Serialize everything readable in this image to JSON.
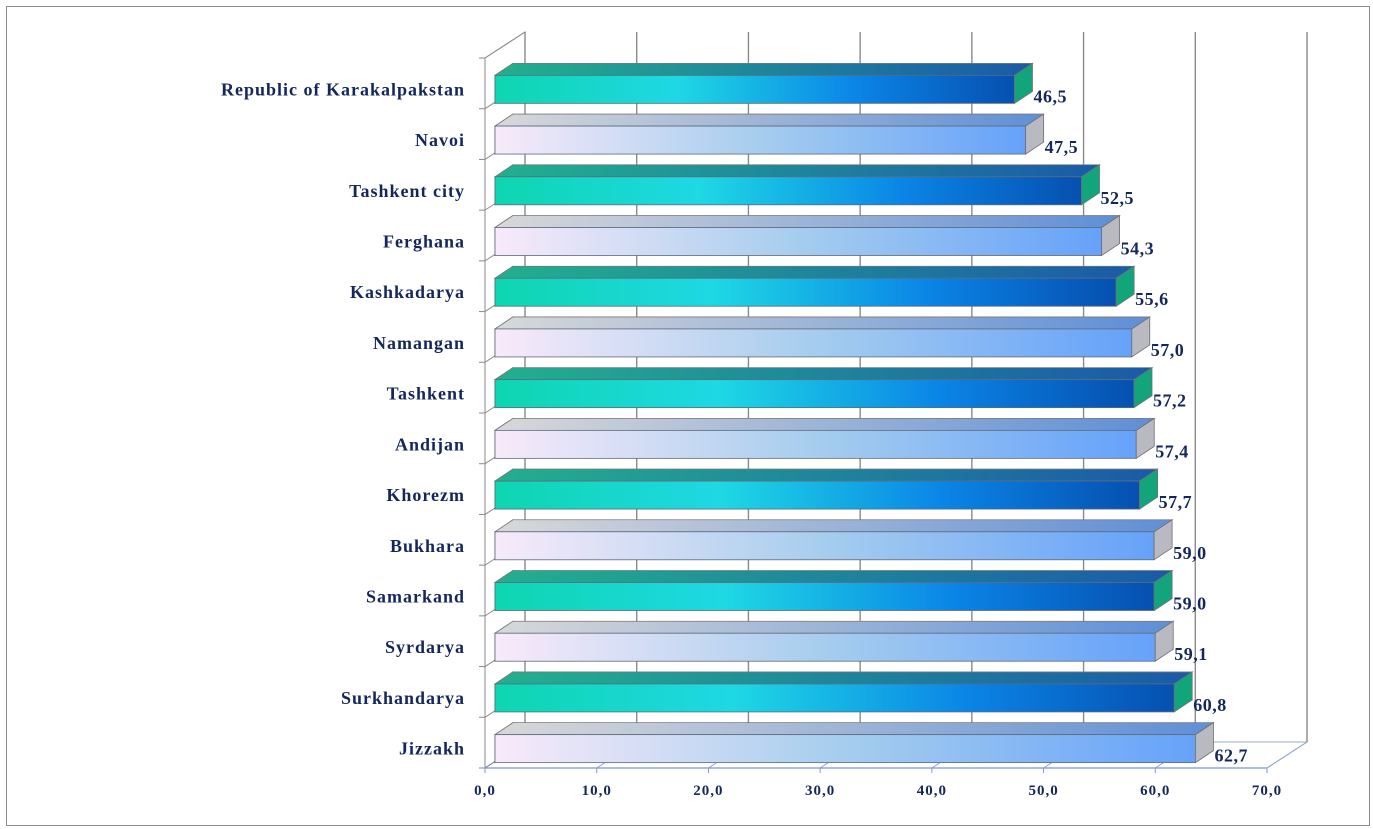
{
  "chart_data": {
    "type": "bar",
    "orientation": "horizontal",
    "style": "3d-clustered",
    "categories": [
      "Republic of Karakalpakstan",
      "Navoi",
      "Tashkent city",
      "Ferghana",
      "Kashkadarya",
      "Namangan",
      "Tashkent",
      "Andijan",
      "Khorezm",
      "Bukhara",
      "Samarkand",
      "Syrdarya",
      "Surkhandarya",
      "Jizzakh"
    ],
    "values": [
      46.5,
      47.5,
      52.5,
      54.3,
      55.6,
      57.0,
      57.2,
      57.4,
      57.7,
      59.0,
      59.0,
      59.1,
      60.8,
      62.7
    ],
    "value_labels": [
      "46,5",
      "47,5",
      "52,5",
      "54,3",
      "55,6",
      "57,0",
      "57,2",
      "57,4",
      "57,7",
      "59,0",
      "59,0",
      "59,1",
      "60,8",
      "62,7"
    ],
    "x_ticks": [
      "0,0",
      "10,0",
      "20,0",
      "30,0",
      "40,0",
      "50,0",
      "60,0",
      "70,0"
    ],
    "xlim": [
      0,
      70
    ],
    "grid": "vertical",
    "title": "",
    "xlabel": "",
    "ylabel": "",
    "colors": {
      "teal_bar": [
        "#0ed6b0",
        "#1ed8e4",
        "#0a84e6",
        "#0650b0"
      ],
      "light_bar": [
        "#f8eafa",
        "#a6cdee",
        "#66a2fa"
      ],
      "text": "#14265c",
      "grid": "#8a8a8a"
    }
  }
}
